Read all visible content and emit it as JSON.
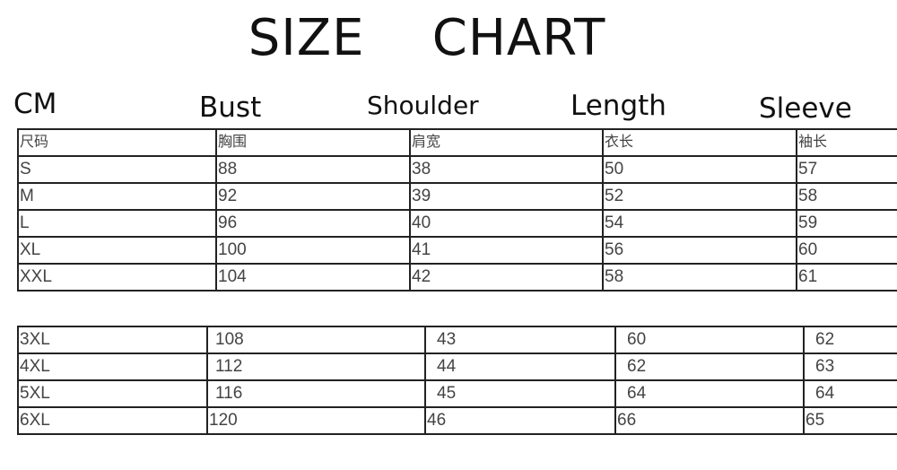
{
  "title": "SIZE    CHART",
  "headers": {
    "unit": "CM",
    "bust": "Bust",
    "shoulder": "Shoulder",
    "length": "Length",
    "sleeve": "Sleeve"
  },
  "table_top": {
    "columns": [
      "尺码",
      "胸围",
      "肩宽",
      "衣长",
      "袖长"
    ],
    "rows": [
      [
        "S",
        "88",
        "38",
        "50",
        "57"
      ],
      [
        "M",
        "92",
        "39",
        "52",
        "58"
      ],
      [
        "L",
        "96",
        "40",
        "54",
        "59"
      ],
      [
        "XL",
        "100",
        "41",
        "56",
        "60"
      ],
      [
        "XXL",
        "104",
        "42",
        "58",
        "61"
      ]
    ]
  },
  "table_bottom": {
    "rows": [
      [
        "3XL",
        "108",
        "43",
        "60",
        "62"
      ],
      [
        "4XL",
        "112",
        "44",
        "62",
        "63"
      ],
      [
        "5XL",
        "116",
        "45",
        "64",
        "64"
      ],
      [
        "6XL",
        "120",
        "46",
        "66",
        "65"
      ]
    ]
  }
}
